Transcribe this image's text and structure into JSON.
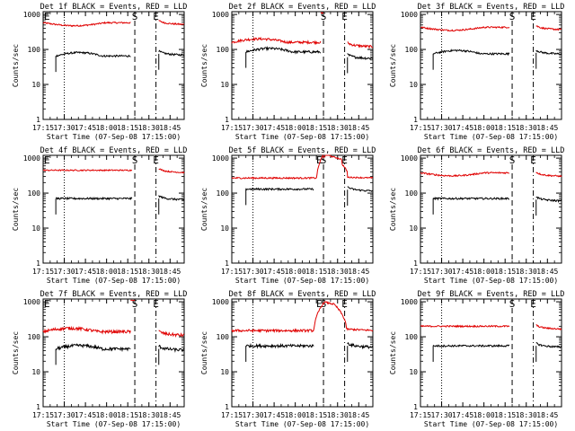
{
  "figure": {
    "background": "#ffffff",
    "series_colors": {
      "events": "#000000",
      "lld": "#e00000"
    }
  },
  "chart_data": [
    {
      "type": "line",
      "title": "Det 1f BLACK = Events, RED = LLD",
      "xlabel": "Start Time (07-Sep-08 17:15:00)",
      "ylabel": "Counts/sec",
      "xticks": [
        "17:15",
        "17:30",
        "17:45",
        "18:00",
        "18:15",
        "18:30",
        "18:45"
      ],
      "yticks": [
        "1",
        "10",
        "100",
        "1000"
      ],
      "yscale": "log",
      "ylim": [
        1,
        1200
      ],
      "xlim_minutes": [
        0,
        100
      ],
      "vlines": [
        {
          "t": 15,
          "style": "dotted"
        },
        {
          "t": 65,
          "style": "dashed"
        },
        {
          "t": 80,
          "style": "dashdot"
        }
      ],
      "markers": [
        {
          "t": 0,
          "label": "E"
        },
        {
          "t": 65,
          "label": "S"
        },
        {
          "t": 80,
          "label": "E"
        }
      ],
      "series": [
        {
          "key": "lld",
          "segments": [
            {
              "start": 0,
              "end": 62,
              "level": 580,
              "shape": "dip",
              "noise": 0.05
            },
            {
              "start": 82,
              "end": 100,
              "level": 560,
              "shape": "decay",
              "noise": 0.05
            }
          ]
        },
        {
          "key": "events",
          "segments": [
            {
              "start": 9,
              "end": 62,
              "level": 65,
              "shape": "hump",
              "noise": 0.06
            },
            {
              "start": 82,
              "end": 100,
              "level": 75,
              "shape": "decay",
              "noise": 0.06
            }
          ]
        }
      ]
    },
    {
      "type": "line",
      "title": "Det 2f BLACK = Events, RED = LLD",
      "xlabel": "Start Time (07-Sep-08 17:15:00)",
      "ylabel": "Counts/sec",
      "xticks": [
        "17:15",
        "17:30",
        "17:45",
        "18:00",
        "18:15",
        "18:30",
        "18:45"
      ],
      "yticks": [
        "1",
        "10",
        "100",
        "1000"
      ],
      "yscale": "log",
      "ylim": [
        1,
        1200
      ],
      "xlim_minutes": [
        0,
        100
      ],
      "vlines": [
        {
          "t": 15,
          "style": "dotted"
        },
        {
          "t": 65,
          "style": "dashed"
        },
        {
          "t": 80,
          "style": "dashdot"
        }
      ],
      "markers": [
        {
          "t": 65,
          "label": "S"
        },
        {
          "t": 80,
          "label": "E"
        }
      ],
      "series": [
        {
          "key": "lld",
          "segments": [
            {
              "start": 0,
              "end": 63,
              "level": 160,
              "shape": "hump",
              "noise": 0.08
            },
            {
              "start": 63,
              "end": 65,
              "level": 1100,
              "shape": "flat",
              "noise": 0.02
            },
            {
              "start": 82,
              "end": 100,
              "level": 130,
              "shape": "decay",
              "noise": 0.08
            }
          ]
        },
        {
          "key": "events",
          "segments": [
            {
              "start": 10,
              "end": 63,
              "level": 85,
              "shape": "hump",
              "noise": 0.08
            },
            {
              "start": 82,
              "end": 100,
              "level": 60,
              "shape": "decay",
              "noise": 0.08
            }
          ]
        }
      ]
    },
    {
      "type": "line",
      "title": "Det 3f BLACK = Events, RED = LLD",
      "xlabel": "Start Time (07-Sep-08 17:15:00)",
      "ylabel": "Counts/sec",
      "xticks": [
        "17:15",
        "17:30",
        "17:45",
        "18:00",
        "18:15",
        "18:30",
        "18:45"
      ],
      "yticks": [
        "1",
        "10",
        "100",
        "1000"
      ],
      "yscale": "log",
      "ylim": [
        1,
        1200
      ],
      "xlim_minutes": [
        0,
        100
      ],
      "vlines": [
        {
          "t": 15,
          "style": "dotted"
        },
        {
          "t": 65,
          "style": "dashed"
        },
        {
          "t": 80,
          "style": "dashdot"
        }
      ],
      "markers": [
        {
          "t": 65,
          "label": "S"
        },
        {
          "t": 80,
          "label": "E"
        }
      ],
      "series": [
        {
          "key": "lld",
          "segments": [
            {
              "start": 0,
              "end": 63,
              "level": 430,
              "shape": "dip",
              "noise": 0.05
            },
            {
              "start": 82,
              "end": 100,
              "level": 400,
              "shape": "decay",
              "noise": 0.05
            }
          ]
        },
        {
          "key": "events",
          "segments": [
            {
              "start": 9,
              "end": 63,
              "level": 75,
              "shape": "hump",
              "noise": 0.06
            },
            {
              "start": 82,
              "end": 100,
              "level": 80,
              "shape": "decay",
              "noise": 0.06
            }
          ]
        }
      ]
    },
    {
      "type": "line",
      "title": "Det 4f BLACK = Events, RED = LLD",
      "xlabel": "Start Time (07-Sep-08 17:15:00)",
      "ylabel": "Counts/sec",
      "xticks": [
        "17:15",
        "17:30",
        "17:45",
        "18:00",
        "18:15",
        "18:30",
        "18:45"
      ],
      "yticks": [
        "1",
        "10",
        "100",
        "1000"
      ],
      "yscale": "log",
      "ylim": [
        1,
        1200
      ],
      "xlim_minutes": [
        0,
        100
      ],
      "vlines": [
        {
          "t": 15,
          "style": "dotted"
        },
        {
          "t": 65,
          "style": "dashed"
        },
        {
          "t": 80,
          "style": "dashdot"
        }
      ],
      "markers": [
        {
          "t": 0,
          "label": "E"
        },
        {
          "t": 65,
          "label": "S"
        },
        {
          "t": 80,
          "label": "E"
        }
      ],
      "series": [
        {
          "key": "lld",
          "segments": [
            {
              "start": 0,
              "end": 63,
              "level": 450,
              "shape": "flat",
              "noise": 0.04
            },
            {
              "start": 82,
              "end": 100,
              "level": 420,
              "shape": "decay",
              "noise": 0.04
            }
          ]
        },
        {
          "key": "events",
          "segments": [
            {
              "start": 9,
              "end": 63,
              "level": 70,
              "shape": "flat",
              "noise": 0.06
            },
            {
              "start": 82,
              "end": 100,
              "level": 70,
              "shape": "decay",
              "noise": 0.06
            }
          ]
        }
      ]
    },
    {
      "type": "line",
      "title": "Det 5f BLACK = Events, RED = LLD",
      "xlabel": "Start Time (07-Sep-08 17:15:00)",
      "ylabel": "Counts/sec",
      "xticks": [
        "17:15",
        "17:30",
        "17:45",
        "18:00",
        "18:15",
        "18:30",
        "18:45"
      ],
      "yticks": [
        "1",
        "10",
        "100",
        "1000"
      ],
      "yscale": "log",
      "ylim": [
        1,
        1200
      ],
      "xlim_minutes": [
        0,
        100
      ],
      "vlines": [
        {
          "t": 15,
          "style": "dotted"
        },
        {
          "t": 65,
          "style": "dashed"
        },
        {
          "t": 80,
          "style": "dashdot"
        }
      ],
      "markers": [
        {
          "t": 62,
          "label": "E"
        },
        {
          "t": 65,
          "label": "S"
        },
        {
          "t": 80,
          "label": "E"
        }
      ],
      "series": [
        {
          "key": "lld",
          "segments": [
            {
              "start": 0,
              "end": 60,
              "level": 270,
              "shape": "flat",
              "noise": 0.05
            },
            {
              "start": 60,
              "end": 100,
              "level": 270,
              "shape": "flare",
              "noise": 0.04
            }
          ]
        },
        {
          "key": "events",
          "segments": [
            {
              "start": 10,
              "end": 58,
              "level": 130,
              "shape": "flat",
              "noise": 0.06
            },
            {
              "start": 82,
              "end": 100,
              "level": 125,
              "shape": "decay",
              "noise": 0.06
            }
          ]
        }
      ]
    },
    {
      "type": "line",
      "title": "Det 6f BLACK = Events, RED = LLD",
      "xlabel": "Start Time (07-Sep-08 17:15:00)",
      "ylabel": "Counts/sec",
      "xticks": [
        "17:15",
        "17:30",
        "17:45",
        "18:00",
        "18:15",
        "18:30",
        "18:45"
      ],
      "yticks": [
        "1",
        "10",
        "100",
        "1000"
      ],
      "yscale": "log",
      "ylim": [
        1,
        1200
      ],
      "xlim_minutes": [
        0,
        100
      ],
      "vlines": [
        {
          "t": 15,
          "style": "dotted"
        },
        {
          "t": 65,
          "style": "dashed"
        },
        {
          "t": 80,
          "style": "dashdot"
        }
      ],
      "markers": [
        {
          "t": 65,
          "label": "S"
        },
        {
          "t": 80,
          "label": "E"
        }
      ],
      "series": [
        {
          "key": "lld",
          "segments": [
            {
              "start": 0,
              "end": 63,
              "level": 380,
              "shape": "dip",
              "noise": 0.05
            },
            {
              "start": 82,
              "end": 100,
              "level": 330,
              "shape": "decay",
              "noise": 0.05
            }
          ]
        },
        {
          "key": "events",
          "segments": [
            {
              "start": 9,
              "end": 63,
              "level": 70,
              "shape": "flat",
              "noise": 0.06
            },
            {
              "start": 82,
              "end": 100,
              "level": 65,
              "shape": "decay",
              "noise": 0.06
            }
          ]
        }
      ]
    },
    {
      "type": "line",
      "title": "Det 7f BLACK = Events, RED = LLD",
      "xlabel": "Start Time (07-Sep-08 17:15:00)",
      "ylabel": "Counts/sec",
      "xticks": [
        "17:15",
        "17:30",
        "17:45",
        "18:00",
        "18:15",
        "18:30",
        "18:45"
      ],
      "yticks": [
        "1",
        "10",
        "100",
        "1000"
      ],
      "yscale": "log",
      "ylim": [
        1,
        1200
      ],
      "xlim_minutes": [
        0,
        100
      ],
      "vlines": [
        {
          "t": 15,
          "style": "dotted"
        },
        {
          "t": 65,
          "style": "dashed"
        },
        {
          "t": 80,
          "style": "dashdot"
        }
      ],
      "markers": [
        {
          "t": 0,
          "label": "E"
        },
        {
          "t": 65,
          "label": "S"
        },
        {
          "t": 80,
          "label": "E"
        }
      ],
      "series": [
        {
          "key": "lld",
          "segments": [
            {
              "start": 0,
              "end": 62,
              "level": 140,
              "shape": "hump",
              "noise": 0.1
            },
            {
              "start": 62,
              "end": 65,
              "level": 1100,
              "shape": "flat",
              "noise": 0.02
            },
            {
              "start": 82,
              "end": 100,
              "level": 120,
              "shape": "decay",
              "noise": 0.1
            }
          ]
        },
        {
          "key": "events",
          "segments": [
            {
              "start": 9,
              "end": 62,
              "level": 45,
              "shape": "hump",
              "noise": 0.1
            },
            {
              "start": 82,
              "end": 100,
              "level": 45,
              "shape": "decay",
              "noise": 0.1
            }
          ]
        }
      ]
    },
    {
      "type": "line",
      "title": "Det 8f BLACK = Events, RED = LLD",
      "xlabel": "Start Time (07-Sep-08 17:15:00)",
      "ylabel": "Counts/sec",
      "xticks": [
        "17:15",
        "17:30",
        "17:45",
        "18:00",
        "18:15",
        "18:30",
        "18:45"
      ],
      "yticks": [
        "1",
        "10",
        "100",
        "1000"
      ],
      "yscale": "log",
      "ylim": [
        1,
        1200
      ],
      "xlim_minutes": [
        0,
        100
      ],
      "vlines": [
        {
          "t": 15,
          "style": "dotted"
        },
        {
          "t": 65,
          "style": "dashed"
        },
        {
          "t": 80,
          "style": "dashdot"
        }
      ],
      "markers": [
        {
          "t": 62,
          "label": "E"
        },
        {
          "t": 65,
          "label": "S"
        },
        {
          "t": 80,
          "label": "E"
        }
      ],
      "series": [
        {
          "key": "lld",
          "segments": [
            {
              "start": 0,
              "end": 58,
              "level": 150,
              "shape": "flat",
              "noise": 0.08
            },
            {
              "start": 58,
              "end": 100,
              "level": 150,
              "shape": "flare8",
              "noise": 0.06
            }
          ]
        },
        {
          "key": "events",
          "segments": [
            {
              "start": 10,
              "end": 58,
              "level": 55,
              "shape": "flat",
              "noise": 0.09
            },
            {
              "start": 82,
              "end": 100,
              "level": 55,
              "shape": "decay",
              "noise": 0.09
            }
          ]
        }
      ]
    },
    {
      "type": "line",
      "title": "Det 9f BLACK = Events, RED = LLD",
      "xlabel": "Start Time (07-Sep-08 17:15:00)",
      "ylabel": "Counts/sec",
      "xticks": [
        "17:15",
        "17:30",
        "17:45",
        "18:00",
        "18:15",
        "18:30",
        "18:45"
      ],
      "yticks": [
        "1",
        "10",
        "100",
        "1000"
      ],
      "yscale": "log",
      "ylim": [
        1,
        1200
      ],
      "xlim_minutes": [
        0,
        100
      ],
      "vlines": [
        {
          "t": 15,
          "style": "dotted"
        },
        {
          "t": 65,
          "style": "dashed"
        },
        {
          "t": 80,
          "style": "dashdot"
        }
      ],
      "markers": [
        {
          "t": 65,
          "label": "S"
        },
        {
          "t": 80,
          "label": "E"
        }
      ],
      "series": [
        {
          "key": "lld",
          "segments": [
            {
              "start": 0,
              "end": 63,
              "level": 200,
              "shape": "flat",
              "noise": 0.05
            },
            {
              "start": 82,
              "end": 100,
              "level": 180,
              "shape": "decay",
              "noise": 0.05
            }
          ]
        },
        {
          "key": "events",
          "segments": [
            {
              "start": 9,
              "end": 63,
              "level": 55,
              "shape": "flat",
              "noise": 0.06
            },
            {
              "start": 82,
              "end": 100,
              "level": 55,
              "shape": "decay",
              "noise": 0.06
            }
          ]
        }
      ]
    }
  ]
}
